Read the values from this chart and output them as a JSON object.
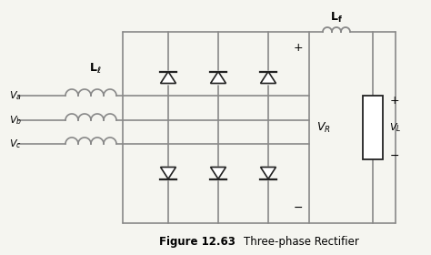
{
  "title": "Figure 12.63    Three-phase Rectifier",
  "bg_color": "#f5f5f0",
  "line_color": "#888888",
  "line_width": 1.2,
  "diode_color": "#222222",
  "caption_bold": true
}
